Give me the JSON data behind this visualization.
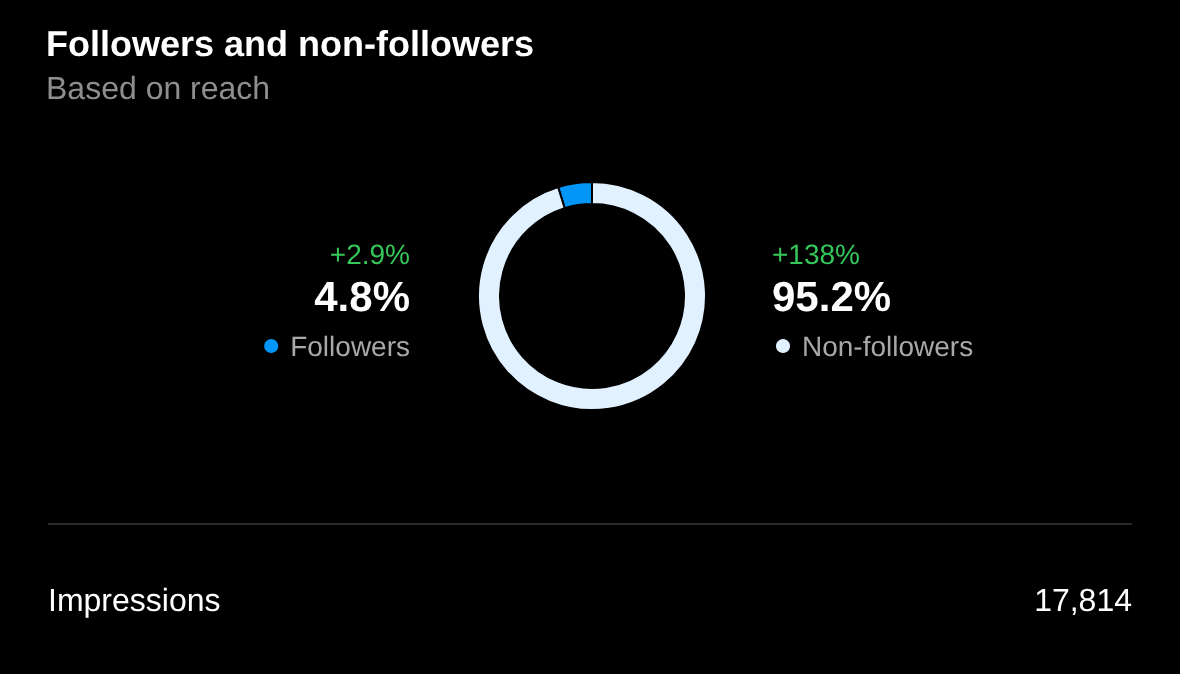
{
  "chart_data": {
    "type": "donut",
    "title": "Followers and non-followers",
    "subtitle": "Based on reach",
    "categories": [
      "Followers",
      "Non-followers"
    ],
    "values": [
      4.8,
      95.2
    ],
    "colors": [
      "#0095f6",
      "#e1f1ff"
    ],
    "value_labels": [
      "4.8%",
      "95.2%"
    ],
    "legend": "bottom",
    "annotations": [
      "+2.9%",
      "+138%",
      "Impressions",
      "17,814"
    ]
  }
}
